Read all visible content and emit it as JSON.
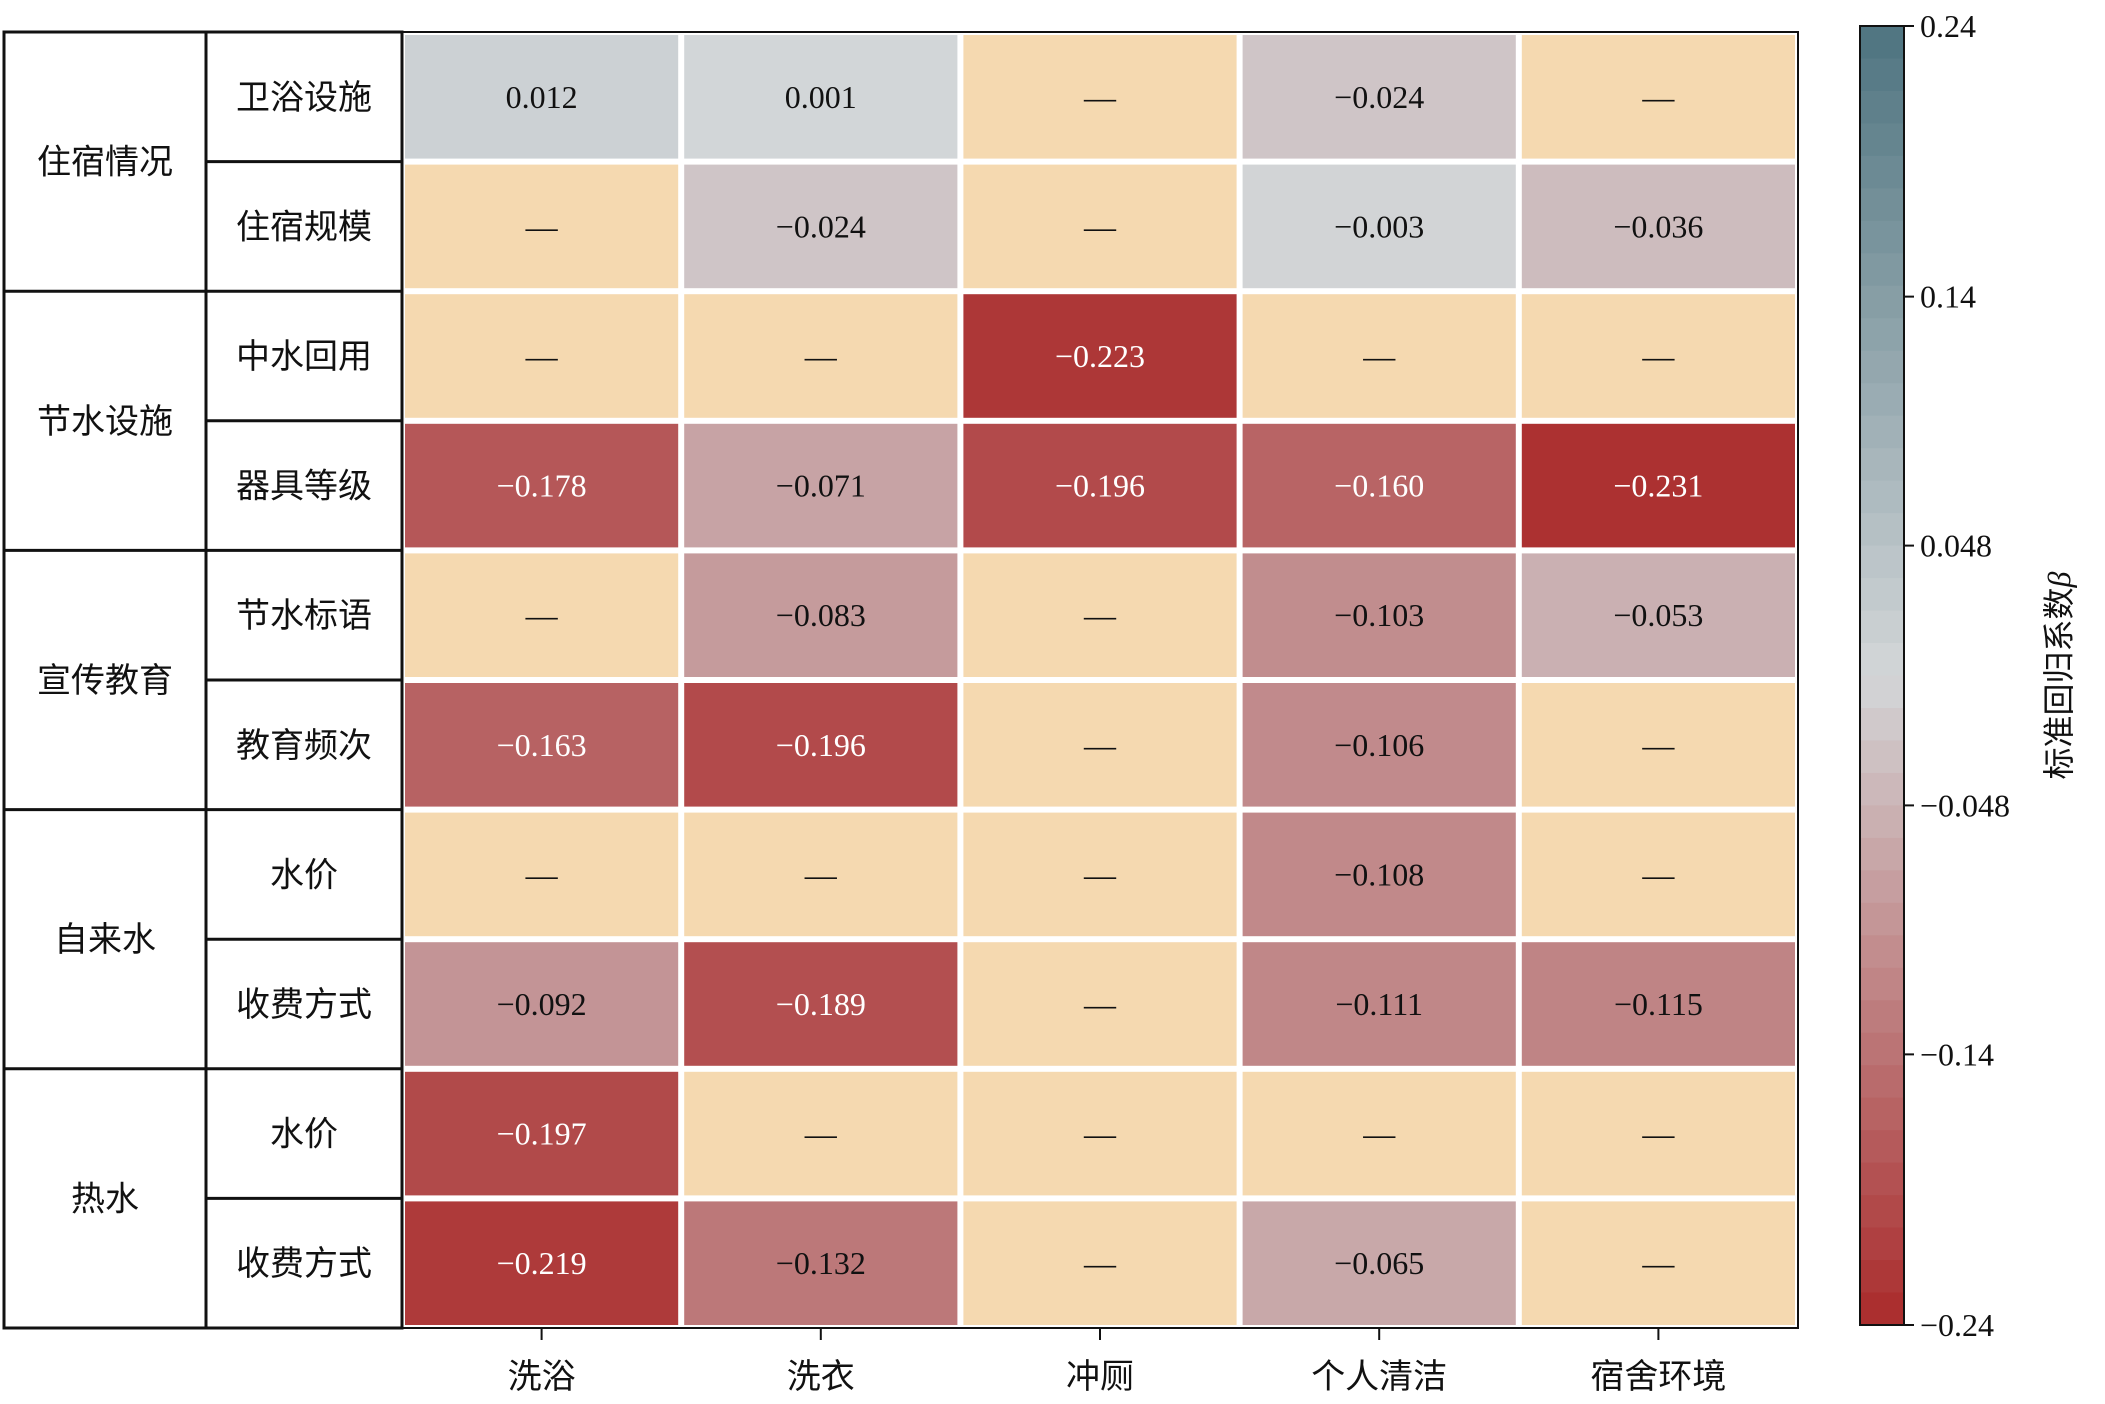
{
  "chart_data": {
    "type": "heatmap",
    "title": "",
    "xlabel": "",
    "ylabel": "",
    "groups": [
      {
        "name": "住宿情况",
        "rows": [
          "卫浴设施",
          "住宿规模"
        ]
      },
      {
        "name": "节水设施",
        "rows": [
          "中水回用",
          "器具等级"
        ]
      },
      {
        "name": "宣传教育",
        "rows": [
          "节水标语",
          "教育频次"
        ]
      },
      {
        "name": "自来水",
        "rows": [
          "水价",
          "收费方式"
        ]
      },
      {
        "name": "热水",
        "rows": [
          "水价",
          "收费方式"
        ]
      }
    ],
    "columns": [
      "洗浴",
      "洗衣",
      "冲厕",
      "个人清洁",
      "宿舍环境"
    ],
    "values": [
      [
        0.012,
        0.001,
        null,
        -0.024,
        null
      ],
      [
        null,
        -0.024,
        null,
        -0.003,
        -0.036
      ],
      [
        null,
        null,
        -0.223,
        null,
        null
      ],
      [
        -0.178,
        -0.071,
        -0.196,
        -0.16,
        -0.231
      ],
      [
        null,
        -0.083,
        null,
        -0.103,
        -0.053
      ],
      [
        -0.163,
        -0.196,
        null,
        -0.106,
        null
      ],
      [
        null,
        null,
        null,
        -0.108,
        null
      ],
      [
        -0.092,
        -0.189,
        null,
        -0.111,
        -0.115
      ],
      [
        -0.197,
        null,
        null,
        null,
        null
      ],
      [
        -0.219,
        -0.132,
        null,
        -0.065,
        null
      ]
    ],
    "cell_labels": [
      [
        "0.012",
        "0.001",
        "—",
        "−0.024",
        "—"
      ],
      [
        "—",
        "−0.024",
        "—",
        "−0.003",
        "−0.036"
      ],
      [
        "—",
        "—",
        "−0.223",
        "—",
        "—"
      ],
      [
        "−0.178",
        "−0.071",
        "−0.196",
        "−0.160",
        "−0.231"
      ],
      [
        "—",
        "−0.083",
        "—",
        "−0.103",
        "−0.053"
      ],
      [
        "−0.163",
        "−0.196",
        "—",
        "−0.106",
        "—"
      ],
      [
        "—",
        "—",
        "—",
        "−0.108",
        "—"
      ],
      [
        "−0.092",
        "−0.189",
        "—",
        "−0.111",
        "−0.115"
      ],
      [
        "−0.197",
        "—",
        "—",
        "—",
        "—"
      ],
      [
        "−0.219",
        "−0.132",
        "—",
        "−0.065",
        "—"
      ]
    ],
    "colorbar": {
      "label": "标准回归系数",
      "label_symbol": "β",
      "min": -0.24,
      "max": 0.24,
      "ticks": [
        0.24,
        0.14,
        0.048,
        -0.048,
        -0.14,
        -0.24
      ],
      "tick_labels": [
        "0.24",
        "0.14",
        "0.048",
        "−0.048",
        "−0.14",
        "−0.24"
      ],
      "colors": {
        "high": "#4e7480",
        "mid": "#d3d6d8",
        "low": "#aa2b2b",
        "missing": "#f5d9b0"
      }
    }
  }
}
